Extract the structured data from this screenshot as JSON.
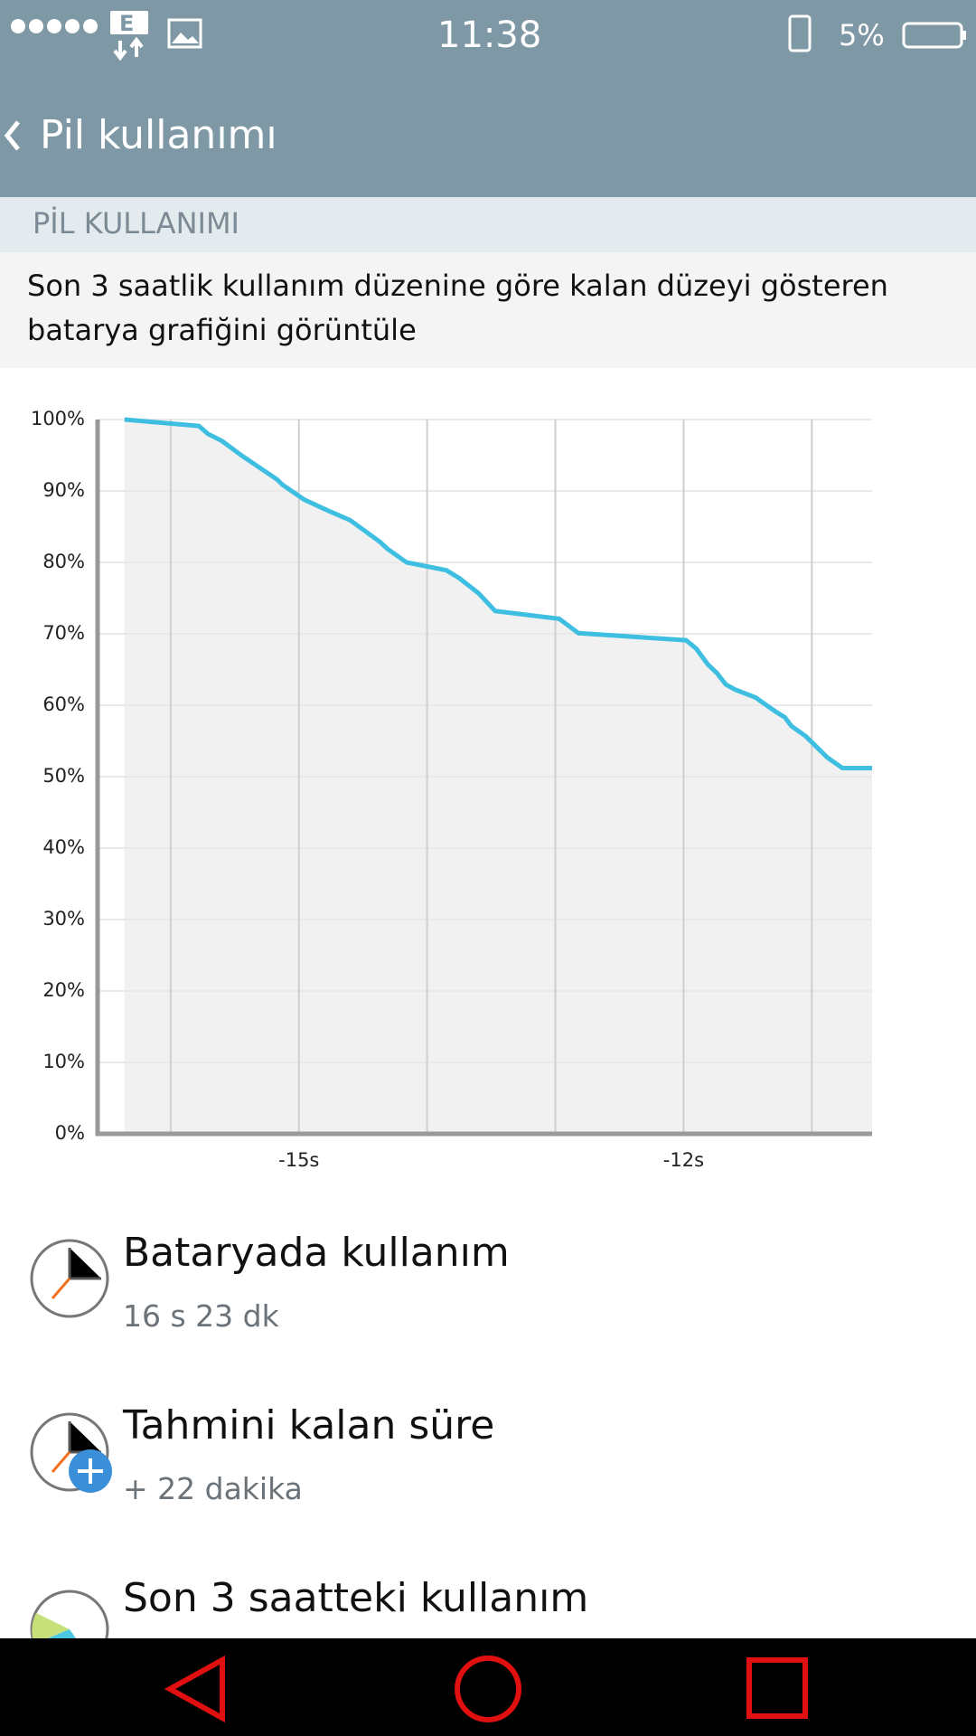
{
  "status": {
    "network": "E",
    "time": "11:38",
    "battery": "5%"
  },
  "header": {
    "title": "Pil kullanımı"
  },
  "section": {
    "title": "PİL KULLANIMI",
    "description": "Son 3 saatlik kullanım düzenine göre kalan düzeyi gösteren batarya grafiğini görüntüle"
  },
  "chart_data": {
    "type": "line",
    "x": [
      -16.36,
      -15.78,
      -15.71,
      -15.6,
      -15.45,
      -15.17,
      -15.13,
      -14.96,
      -14.78,
      -14.6,
      -14.37,
      -14.31,
      -14.16,
      -13.85,
      -13.75,
      -13.6,
      -13.47,
      -12.97,
      -12.82,
      -11.98,
      -11.9,
      -11.81,
      -11.74,
      -11.67,
      -11.6,
      -11.44,
      -11.29,
      -11.21,
      -11.16,
      -11.05,
      -10.88,
      -10.76,
      -10.53
    ],
    "series": [
      {
        "color": "#3ebfe2",
        "fill_color": "#f1f1f1",
        "values": [
          100,
          99.1,
          98,
          97,
          95,
          91.6,
          90.9,
          88.8,
          87.3,
          85.9,
          82.9,
          81.9,
          80,
          78.9,
          77.8,
          75.7,
          73.2,
          72.1,
          70.1,
          69.1,
          67.9,
          65.7,
          64.5,
          62.9,
          62.2,
          61.1,
          59.2,
          58.3,
          57.1,
          55.7,
          52.7,
          51.2,
          51.2
        ]
      }
    ],
    "xlim": [
      -16.57,
      -10.53
    ],
    "ylim": [
      0,
      100
    ],
    "xticks": [
      {
        "value": -15,
        "label": "-15s"
      },
      {
        "value": -12,
        "label": "-12s"
      }
    ],
    "x_grid_lines": [
      -16,
      -15,
      -14,
      -13,
      -12,
      -11
    ],
    "yticks": [
      {
        "value": 0,
        "label": "0%"
      },
      {
        "value": 10,
        "label": "10%"
      },
      {
        "value": 20,
        "label": "20%"
      },
      {
        "value": 30,
        "label": "30%"
      },
      {
        "value": 40,
        "label": "40%"
      },
      {
        "value": 50,
        "label": "50%"
      },
      {
        "value": 60,
        "label": "60%"
      },
      {
        "value": 70,
        "label": "70%"
      },
      {
        "value": 80,
        "label": "80%"
      },
      {
        "value": 90,
        "label": "90%"
      },
      {
        "value": 100,
        "label": "100%"
      }
    ],
    "grid": true
  },
  "list": {
    "items": [
      {
        "title": "Bataryada kullanım",
        "subtitle": "16 s 23 dk"
      },
      {
        "title": "Tahmini kalan süre",
        "subtitle": "+ 22 dakika"
      },
      {
        "title": "Son 3 saatteki kullanım"
      }
    ]
  }
}
